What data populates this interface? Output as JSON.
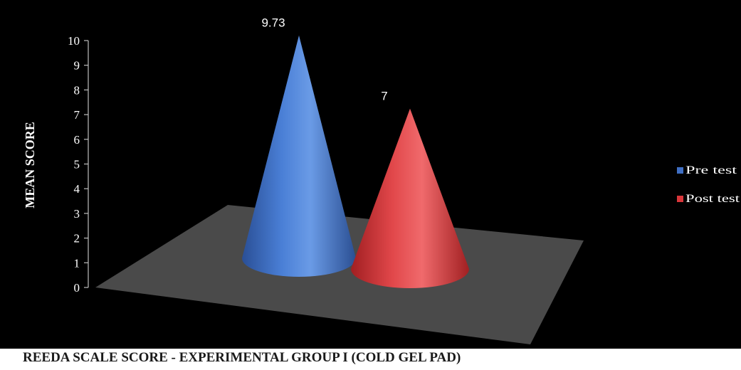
{
  "chart_data": {
    "type": "bar",
    "title": "",
    "xlabel": "REEDA SCALE SCORE - EXPERIMENTAL GROUP I (COLD GEL PAD)",
    "ylabel": "MEAN SCORE",
    "ylim": [
      0,
      10
    ],
    "yticks": [
      "0",
      "1",
      "2",
      "3",
      "4",
      "5",
      "6",
      "7",
      "8",
      "9",
      "10"
    ],
    "series": [
      {
        "name": "Pre test",
        "value": 9.73,
        "label": "9.73",
        "color": "#3f6fc4"
      },
      {
        "name": "Post test",
        "value": 7,
        "label": "7",
        "color": "#d9363a"
      }
    ],
    "legend_position": "right",
    "grid": false,
    "background_color": "#000000",
    "floor_color": "#4a4a4a",
    "text_color": "#ffffff"
  }
}
